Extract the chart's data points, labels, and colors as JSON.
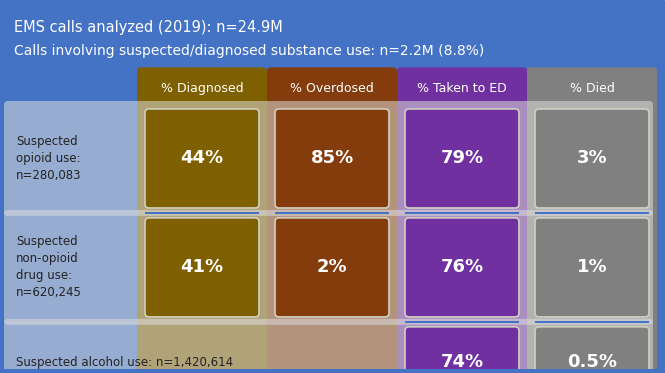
{
  "title_line1": "EMS calls analyzed (2019): n=24.9M",
  "title_line2": "Calls involving suspected/diagnosed substance use: n=2.2M (8.8%)",
  "background_color": "#4472C4",
  "header_labels": [
    "% Diagnosed",
    "% Overdosed",
    "% Taken to ED",
    "% Died"
  ],
  "col_colors": [
    "#7F6000",
    "#843C0C",
    "#7030A0",
    "#808080"
  ],
  "row_labels": [
    "Suspected\nopioid use:\nn=280,083",
    "Suspected\nnon-opioid\ndrug use:\nn=620,245",
    "Suspected alcohol use: n=1,420,614"
  ],
  "cell_values": [
    [
      "44%",
      "85%",
      "79%",
      "3%"
    ],
    [
      "41%",
      "2%",
      "76%",
      "1%"
    ],
    [
      null,
      null,
      "74%",
      "0.5%"
    ]
  ],
  "cell_colors": [
    [
      "#7F6000",
      "#843C0C",
      "#7030A0",
      "#808080"
    ],
    [
      "#7F6000",
      "#843C0C",
      "#7030A0",
      "#808080"
    ],
    [
      null,
      null,
      "#7030A0",
      "#808080"
    ]
  ],
  "row_bg": "#DCDCDC",
  "text_white": "#FFFFFF",
  "text_dark": "#222222",
  "connector_color": "#4472C4"
}
